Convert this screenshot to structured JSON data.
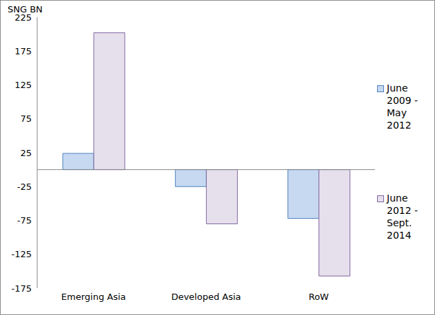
{
  "chart_data": {
    "type": "bar",
    "y_label": "SNG BN",
    "categories": [
      "Emerging Asia",
      "Developed Asia",
      "RoW"
    ],
    "series": [
      {
        "name": "June 2009 - May 2012",
        "color": "#c6d9f1",
        "values": [
          24,
          -25,
          -72
        ]
      },
      {
        "name": "June 2012 - Sept. 2014",
        "color": "#e6e0ec",
        "values": [
          202,
          -80,
          -157
        ]
      }
    ],
    "ylim": [
      -175,
      225
    ],
    "yticks": [
      -175,
      -125,
      -75,
      -25,
      25,
      75,
      125,
      175,
      225
    ],
    "grid": false,
    "legend": "right"
  }
}
